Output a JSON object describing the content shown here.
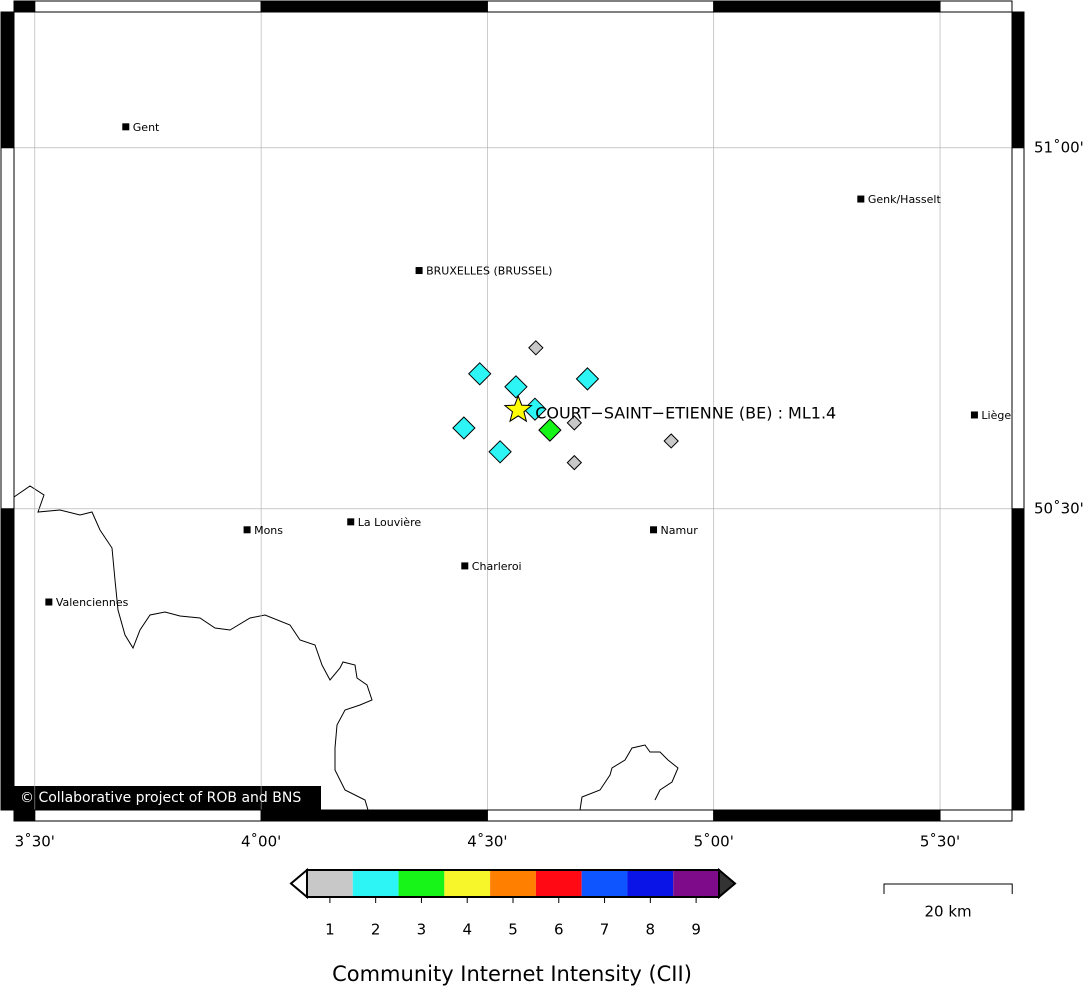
{
  "map": {
    "xlim": [
      3.454,
      5.659
    ],
    "ylim": [
      50.083,
      51.188
    ],
    "xticks": [
      {
        "value": 3.5,
        "label": "3˚30'"
      },
      {
        "value": 4.0,
        "label": "4˚00'"
      },
      {
        "value": 4.5,
        "label": "4˚30'"
      },
      {
        "value": 5.0,
        "label": "5˚00'"
      },
      {
        "value": 5.5,
        "label": "5˚30'"
      }
    ],
    "yticks": [
      {
        "value": 50.5,
        "label": "50˚30'"
      },
      {
        "value": 51.0,
        "label": "51˚00'"
      }
    ],
    "grid": true,
    "cities": [
      {
        "name": "Gent",
        "lon": 3.701,
        "lat": 51.029
      },
      {
        "name": "Genk/Hasselt",
        "lon": 5.325,
        "lat": 50.929
      },
      {
        "name": "BRUXELLES (BRUSSEL)",
        "lon": 4.349,
        "lat": 50.83
      },
      {
        "name": "Liège",
        "lon": 5.576,
        "lat": 50.63
      },
      {
        "name": "Mons",
        "lon": 3.969,
        "lat": 50.471
      },
      {
        "name": "La Louvière",
        "lon": 4.198,
        "lat": 50.482
      },
      {
        "name": "Charleroi",
        "lon": 4.45,
        "lat": 50.421
      },
      {
        "name": "Namur",
        "lon": 4.867,
        "lat": 50.471
      },
      {
        "name": "Valenciennes",
        "lon": 3.531,
        "lat": 50.371
      }
    ],
    "reports": [
      {
        "lon": 4.607,
        "lat": 50.723,
        "cii": 1
      },
      {
        "lon": 4.483,
        "lat": 50.687,
        "cii": 2
      },
      {
        "lon": 4.563,
        "lat": 50.669,
        "cii": 2
      },
      {
        "lon": 4.721,
        "lat": 50.68,
        "cii": 2
      },
      {
        "lon": 4.605,
        "lat": 50.638,
        "cii": 2
      },
      {
        "lon": 4.448,
        "lat": 50.612,
        "cii": 2
      },
      {
        "lon": 4.638,
        "lat": 50.609,
        "cii": 3
      },
      {
        "lon": 4.692,
        "lat": 50.619,
        "cii": 1
      },
      {
        "lon": 4.528,
        "lat": 50.579,
        "cii": 2
      },
      {
        "lon": 4.692,
        "lat": 50.564,
        "cii": 1
      },
      {
        "lon": 4.906,
        "lat": 50.594,
        "cii": 1
      }
    ],
    "epicenter": {
      "lon": 4.568,
      "lat": 50.637,
      "label": "COURT−SAINT−ETIENNE (BE) : ML1.4"
    },
    "copyright": "© Collaborative project of ROB and BNS"
  },
  "colorbar": {
    "title": "Community Internet Intensity (CII)",
    "values": [
      1,
      2,
      3,
      4,
      5,
      6,
      7,
      8,
      9
    ],
    "colors": [
      "#c8c8c8",
      "#2ef5f5",
      "#17f417",
      "#f6f62a",
      "#ff7f00",
      "#ff0a14",
      "#0f55ff",
      "#0a14e6",
      "#7e0c8a"
    ]
  },
  "scale_bar": {
    "value": 20,
    "label": "20 km"
  }
}
